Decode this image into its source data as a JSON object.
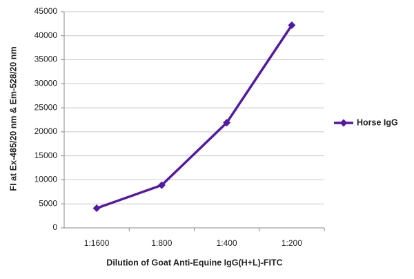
{
  "chart_data": {
    "type": "line",
    "x_label": "Dilution of Goat Anti-Equine IgG(H+L)-FITC",
    "y_label": "FI at Ex-485/20 nm & Em-528/20 nm",
    "categories": [
      "1:1600",
      "1:800",
      "1:400",
      "1:200"
    ],
    "series": [
      {
        "name": "Horse IgG",
        "color": "#5418a8",
        "values": [
          4100,
          8900,
          21900,
          42200
        ]
      }
    ],
    "ylim": [
      0,
      45000
    ],
    "yticks": [
      0,
      5000,
      10000,
      15000,
      20000,
      25000,
      30000,
      35000,
      40000,
      45000
    ],
    "grid": true,
    "legend": "right"
  }
}
